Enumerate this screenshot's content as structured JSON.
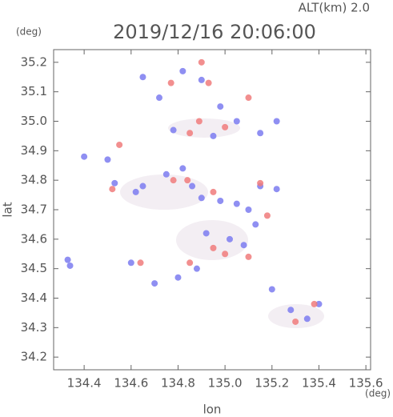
{
  "chart_data": {
    "type": "scatter",
    "title": "2019/12/16 20:06:00",
    "subtitle": "ALT(km)  2.0",
    "x_label": "lon",
    "y_label": "lat",
    "x_unit": "(deg)",
    "y_unit": "(deg)",
    "xlim": [
      134.27,
      135.62
    ],
    "ylim": [
      34.157,
      35.243
    ],
    "xticks": [
      134.4,
      134.6,
      134.8,
      {
        "value": 135,
        "label": "135.0"
      },
      135.2,
      135.4,
      135.6
    ],
    "yticks": [
      34.2,
      34.3,
      34.4,
      34.5,
      34.6,
      34.7,
      34.8,
      34.9,
      {
        "value": 35,
        "label": "35.0"
      },
      35.1,
      35.2
    ],
    "series": [
      {
        "color": "#7b7bf0",
        "x": [
          134.4,
          134.33,
          134.34,
          134.5,
          134.53,
          134.62,
          134.65,
          134.75,
          134.82,
          134.86,
          134.9,
          134.98,
          135.05,
          135.1,
          135.13,
          135.15,
          135.22,
          134.92,
          135.02,
          135.08,
          134.88,
          134.8,
          134.7,
          135.28,
          135.35,
          135.4,
          134.65,
          134.72,
          134.82,
          134.9,
          134.98,
          135.05,
          135.15,
          135.22,
          134.78,
          134.95,
          134.6,
          135.2
        ],
        "values": [
          34.88,
          34.53,
          34.51,
          34.87,
          34.79,
          34.76,
          34.78,
          34.82,
          34.84,
          34.78,
          34.74,
          34.73,
          34.72,
          34.7,
          34.65,
          34.78,
          34.77,
          34.62,
          34.6,
          34.58,
          34.5,
          34.47,
          34.45,
          34.36,
          34.33,
          34.38,
          35.15,
          35.08,
          35.17,
          35.14,
          35.05,
          35.0,
          34.96,
          35.0,
          34.97,
          34.95,
          34.52,
          34.43
        ]
      },
      {
        "color": "#f07b7b",
        "x": [
          134.55,
          134.52,
          134.78,
          134.84,
          134.95,
          135.15,
          134.95,
          135.0,
          135.1,
          134.85,
          134.64,
          134.77,
          134.93,
          134.89,
          134.85,
          135.0,
          135.1,
          135.3,
          135.38,
          134.9,
          135.18
        ],
        "values": [
          34.92,
          34.77,
          34.8,
          34.8,
          34.76,
          34.79,
          34.57,
          34.55,
          34.54,
          34.52,
          34.52,
          35.13,
          35.13,
          35.0,
          34.96,
          34.98,
          35.08,
          34.32,
          34.38,
          35.2,
          34.68
        ]
      }
    ]
  }
}
